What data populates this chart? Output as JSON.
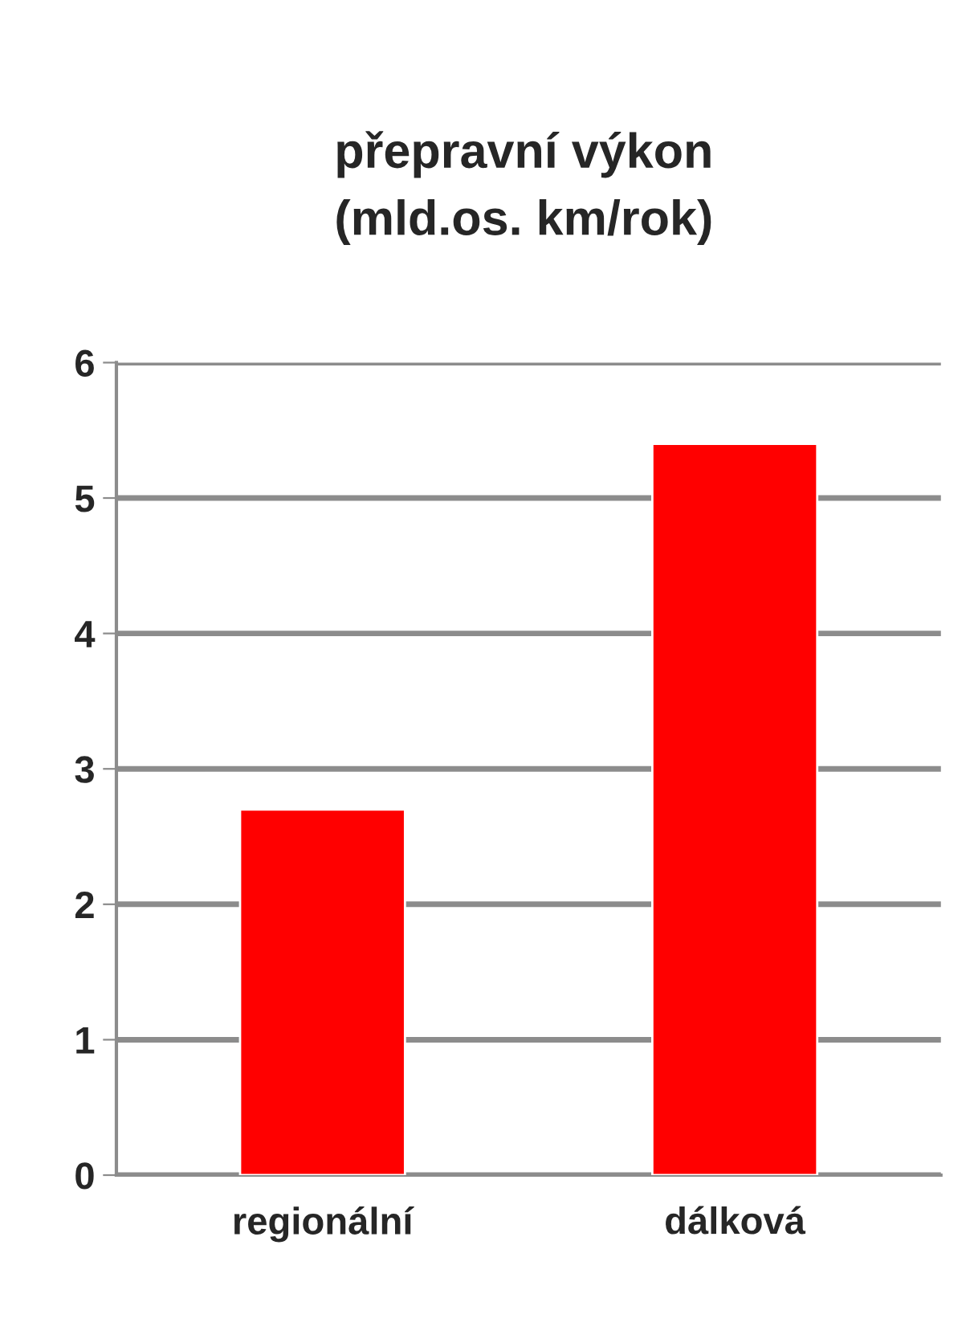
{
  "chart_data": {
    "type": "bar",
    "title": "přepravní výkon\n(mld.os. km/rok)",
    "categories": [
      "regionální",
      "dálková"
    ],
    "values": [
      2.7,
      5.4
    ],
    "color": "#ff0000",
    "ylim": [
      0,
      6
    ],
    "yticks": [
      0,
      1,
      2,
      3,
      4,
      5,
      6
    ],
    "grid": "y",
    "legend": false
  }
}
